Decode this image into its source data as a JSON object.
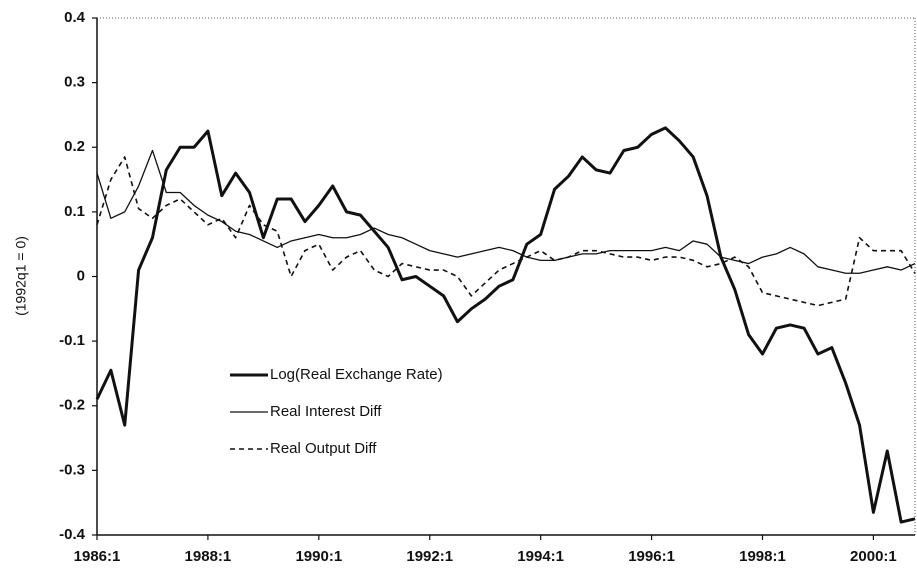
{
  "chart_data": {
    "type": "line",
    "y_label": "(1992q1 = 0)",
    "categories": [
      "1986:1",
      null,
      null,
      null,
      null,
      null,
      null,
      null,
      "1988:1",
      null,
      null,
      null,
      null,
      null,
      null,
      null,
      "1990:1",
      null,
      null,
      null,
      null,
      null,
      null,
      null,
      "1992:1",
      null,
      null,
      null,
      null,
      null,
      null,
      null,
      "1994:1",
      null,
      null,
      null,
      null,
      null,
      null,
      null,
      "1996:1",
      null,
      null,
      null,
      null,
      null,
      null,
      null,
      "1998:1",
      null,
      null,
      null,
      null,
      null,
      null,
      null,
      "2000:1",
      null,
      null,
      null
    ],
    "ylim": [
      -0.4,
      0.4
    ],
    "yticks": [
      -0.4,
      -0.3,
      -0.2,
      -0.1,
      0,
      0.1,
      0.2,
      0.3,
      0.4
    ],
    "grid": false,
    "legend": "lower-left",
    "series": [
      {
        "name": "Log(Real Exchange Rate)",
        "color": "#111111",
        "width": 3,
        "dash": false,
        "values": [
          -0.19,
          -0.145,
          -0.23,
          0.01,
          0.06,
          0.165,
          0.2,
          0.2,
          0.225,
          0.125,
          0.16,
          0.13,
          0.06,
          0.12,
          0.12,
          0.085,
          0.11,
          0.14,
          0.1,
          0.095,
          0.07,
          0.045,
          -0.005,
          0,
          -0.015,
          -0.03,
          -0.07,
          -0.05,
          -0.035,
          -0.015,
          -0.005,
          0.05,
          0.065,
          0.135,
          0.155,
          0.185,
          0.165,
          0.16,
          0.195,
          0.2,
          0.22,
          0.23,
          0.21,
          0.185,
          0.125,
          0.03,
          -0.02,
          -0.09,
          -0.12,
          -0.08,
          -0.075,
          -0.08,
          -0.12,
          -0.11,
          -0.165,
          -0.23,
          -0.365,
          -0.27,
          -0.38,
          -0.375
        ]
      },
      {
        "name": "Real Interest Diff",
        "color": "#111111",
        "width": 1.3,
        "dash": false,
        "values": [
          0.16,
          0.09,
          0.1,
          0.14,
          0.195,
          0.13,
          0.13,
          0.11,
          0.095,
          0.085,
          0.07,
          0.065,
          0.055,
          0.045,
          0.055,
          0.06,
          0.065,
          0.06,
          0.06,
          0.065,
          0.075,
          0.065,
          0.06,
          0.05,
          0.04,
          0.035,
          0.03,
          0.035,
          0.04,
          0.045,
          0.04,
          0.03,
          0.025,
          0.025,
          0.03,
          0.035,
          0.035,
          0.04,
          0.04,
          0.04,
          0.04,
          0.045,
          0.04,
          0.055,
          0.05,
          0.03,
          0.025,
          0.02,
          0.03,
          0.035,
          0.045,
          0.035,
          0.015,
          0.01,
          0.005,
          0.005,
          0.01,
          0.015,
          0.01,
          0.02
        ]
      },
      {
        "name": "Real Output Diff",
        "color": "#111111",
        "width": 1.6,
        "dash": true,
        "values": [
          0.08,
          0.15,
          0.185,
          0.105,
          0.09,
          0.11,
          0.12,
          0.1,
          0.08,
          0.09,
          0.06,
          0.11,
          0.08,
          0.07,
          0,
          0.04,
          0.05,
          0.01,
          0.03,
          0.04,
          0.01,
          0,
          0.02,
          0.015,
          0.01,
          0.01,
          0,
          -0.03,
          -0.01,
          0.01,
          0.02,
          0.03,
          0.04,
          0.025,
          0.03,
          0.04,
          0.04,
          0.035,
          0.03,
          0.03,
          0.025,
          0.03,
          0.03,
          0.025,
          0.015,
          0.02,
          0.03,
          0.015,
          -0.025,
          -0.03,
          -0.035,
          -0.04,
          -0.045,
          -0.04,
          -0.035,
          0.06,
          0.04,
          0.04,
          0.04,
          0.005
        ]
      }
    ]
  }
}
